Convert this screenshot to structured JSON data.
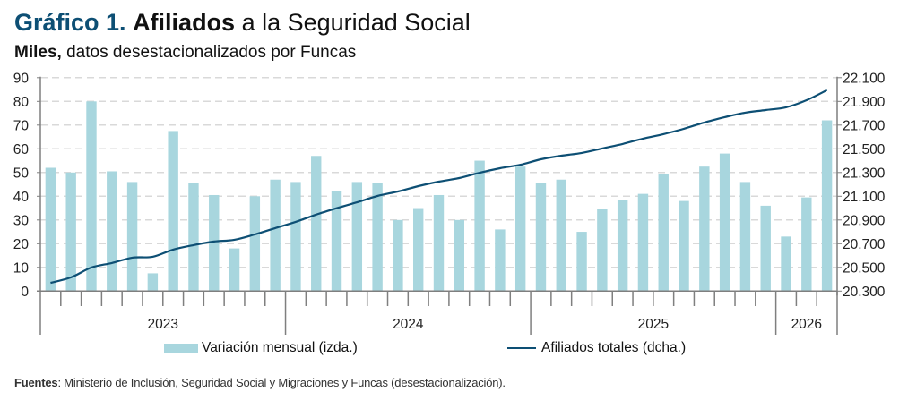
{
  "header": {
    "title_number": "Gráfico 1.",
    "title_bold": "Afiliados",
    "title_rest": "a la Seguridad Social",
    "subtitle_bold": "Miles,",
    "subtitle_rest": "datos desestacionalizados por Funcas"
  },
  "legend": {
    "bars_label": "Variación mensual (izda.)",
    "line_label": "Afiliados totales (dcha.)"
  },
  "source": {
    "label": "Fuentes",
    "text": ": Ministerio de Inclusión, Seguridad Social y Migraciones y Funcas (desestacionalización)."
  },
  "colors": {
    "bars": "#a8d6de",
    "line": "#0d4f74",
    "title_accent": "#0d4f74",
    "grid": "#d9d9d9",
    "axis": "#7f7f7f"
  },
  "chart_data": {
    "type": "bar+line",
    "title": "Gráfico 1. Afiliados a la Seguridad Social",
    "subtitle": "Miles, datos desestacionalizados por Funcas",
    "x_groups": [
      {
        "label": "2023",
        "months": 12
      },
      {
        "label": "2024",
        "months": 12
      },
      {
        "label": "2025",
        "months": 12
      },
      {
        "label": "2026",
        "months": 3
      }
    ],
    "y_left": {
      "label": "Variación mensual (izda.)",
      "range": [
        0,
        90
      ],
      "ticks": [
        0,
        10,
        20,
        30,
        40,
        50,
        60,
        70,
        80,
        90
      ]
    },
    "y_right": {
      "label": "Afiliados totales (dcha.)",
      "range": [
        20300,
        22100
      ],
      "ticks": [
        "20.300",
        "20.500",
        "20.700",
        "20.900",
        "21.100",
        "21.300",
        "21.500",
        "21.700",
        "21.900",
        "22.100"
      ]
    },
    "grid": true,
    "legend_position": "bottom",
    "series": [
      {
        "name": "Variación mensual (izda.)",
        "type": "bar",
        "axis": "left",
        "values": [
          52,
          50,
          80,
          50.5,
          46,
          7.5,
          67.5,
          45.5,
          40.5,
          18,
          40,
          47,
          46,
          57,
          42,
          46,
          45.5,
          30,
          35,
          40.5,
          30,
          55,
          26,
          52.5,
          45.5,
          47,
          25,
          34.5,
          38.5,
          41,
          49.5,
          38,
          52.5,
          58,
          46,
          36,
          23,
          39.5,
          72
        ]
      },
      {
        "name": "Afiliados totales (dcha.)",
        "type": "line",
        "axis": "right",
        "values": [
          20370,
          20416,
          20499,
          20537,
          20582,
          20590,
          20650,
          20688,
          20718,
          20733,
          20778,
          20831,
          20884,
          20945,
          20999,
          21049,
          21102,
          21140,
          21185,
          21223,
          21253,
          21298,
          21336,
          21366,
          21412,
          21442,
          21465,
          21503,
          21541,
          21586,
          21624,
          21669,
          21722,
          21767,
          21805,
          21827,
          21850,
          21910,
          21995
        ]
      }
    ]
  }
}
